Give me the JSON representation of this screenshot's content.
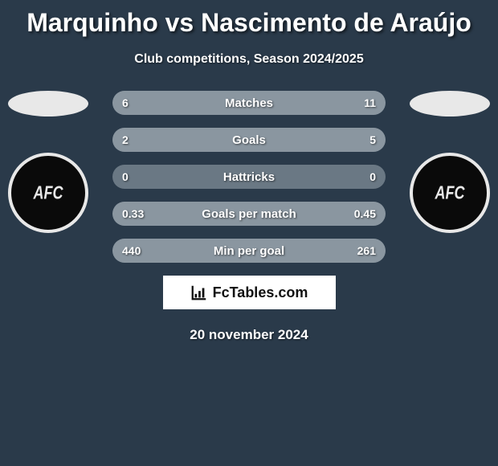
{
  "title": "Marquinho vs Nascimento de Araújo",
  "subtitle": "Club competitions, Season 2024/2025",
  "date": "20 november 2024",
  "logo_text": "FcTables.com",
  "colors": {
    "background": "#2a3a4a",
    "bar_track": "#6a7884",
    "bar_fill_left": "#8a96a0",
    "bar_fill_right": "#8a96a0"
  },
  "player_left": {
    "badge_text": "AFC"
  },
  "player_right": {
    "badge_text": "AFC"
  },
  "stats": [
    {
      "label": "Matches",
      "left_val": "6",
      "right_val": "11",
      "left_pct": 35,
      "right_pct": 65
    },
    {
      "label": "Goals",
      "left_val": "2",
      "right_val": "5",
      "left_pct": 29,
      "right_pct": 71
    },
    {
      "label": "Hattricks",
      "left_val": "0",
      "right_val": "0",
      "left_pct": 0,
      "right_pct": 0
    },
    {
      "label": "Goals per match",
      "left_val": "0.33",
      "right_val": "0.45",
      "left_pct": 42,
      "right_pct": 58
    },
    {
      "label": "Min per goal",
      "left_val": "440",
      "right_val": "261",
      "left_pct": 63,
      "right_pct": 37
    }
  ]
}
